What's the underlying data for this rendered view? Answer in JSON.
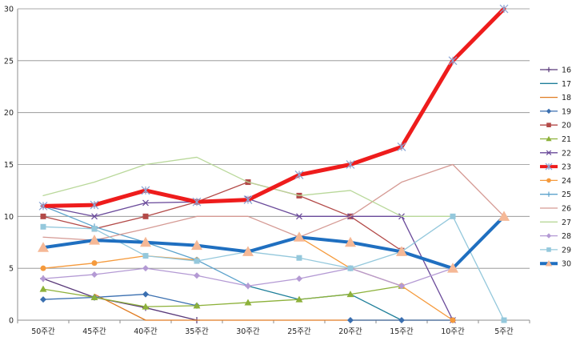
{
  "chart_data": {
    "type": "line",
    "categories": [
      "50주간",
      "45주간",
      "40주간",
      "35주간",
      "30주간",
      "25주간",
      "20주간",
      "15주간",
      "10주간",
      "5주간"
    ],
    "y_ticks": [
      "0",
      "5",
      "10",
      "15",
      "20",
      "25",
      "30"
    ],
    "ylim": [
      0,
      30
    ],
    "grid": "horizontal",
    "legend": "right",
    "series": [
      {
        "name": "16",
        "color": "#5a3a7a",
        "marker": "plus",
        "width": 1.3,
        "values": [
          4,
          2.2,
          1.2,
          0,
          null,
          null,
          null,
          null,
          null,
          null
        ]
      },
      {
        "name": "17",
        "color": "#1f7f9a",
        "marker": "none",
        "width": 1.3,
        "values": [
          null,
          null,
          null,
          null,
          3.3,
          2,
          2.5,
          0,
          null,
          null
        ]
      },
      {
        "name": "18",
        "color": "#e07b20",
        "marker": "none",
        "width": 1.3,
        "values": [
          null,
          2.5,
          0,
          0,
          0,
          0,
          0,
          0,
          0,
          null
        ]
      },
      {
        "name": "19",
        "color": "#3a6fb0",
        "marker": "diamond",
        "width": 1.3,
        "values": [
          2,
          2.2,
          2.5,
          1.4,
          null,
          null,
          0,
          0,
          0,
          null
        ]
      },
      {
        "name": "20",
        "color": "#b34a48",
        "marker": "square",
        "width": 1.3,
        "values": [
          10,
          8.8,
          10,
          11.4,
          13.3,
          12,
          10,
          6.7,
          null,
          null
        ]
      },
      {
        "name": "21",
        "color": "#8db13a",
        "marker": "triangle",
        "width": 1.3,
        "values": [
          3,
          2.2,
          1.3,
          1.4,
          1.7,
          2,
          2.5,
          3.3,
          null,
          null
        ]
      },
      {
        "name": "22",
        "color": "#6a4a9a",
        "marker": "x",
        "width": 1.3,
        "values": [
          11,
          10,
          11.3,
          11.4,
          11.7,
          10,
          10,
          10,
          0,
          null
        ]
      },
      {
        "name": "23",
        "color": "#ee1c1c",
        "marker": "star",
        "width": 5,
        "values": [
          11,
          11.1,
          12.5,
          11.4,
          11.6,
          14,
          15,
          16.7,
          25,
          30
        ]
      },
      {
        "name": "24",
        "color": "#f59a3c",
        "marker": "circle",
        "width": 1.3,
        "values": [
          5,
          5.5,
          6.2,
          5.8,
          null,
          8,
          5,
          3.3,
          0,
          null
        ]
      },
      {
        "name": "25",
        "color": "#5da3cc",
        "marker": "plus",
        "width": 1.3,
        "values": [
          11,
          9,
          7.5,
          5.8,
          3.3,
          null,
          null,
          null,
          null,
          null
        ]
      },
      {
        "name": "26",
        "color": "#d59a94",
        "marker": "none",
        "width": 1.3,
        "values": [
          8,
          7.7,
          8.8,
          10,
          10,
          8,
          10,
          13.3,
          15,
          10
        ]
      },
      {
        "name": "27",
        "color": "#b9d89a",
        "marker": "none",
        "width": 1.3,
        "values": [
          12,
          13.3,
          15,
          15.7,
          13.3,
          12,
          12.5,
          10,
          10,
          null
        ]
      },
      {
        "name": "28",
        "color": "#b49ad4",
        "marker": "diamond",
        "width": 1.3,
        "values": [
          4,
          4.4,
          5,
          4.3,
          3.3,
          4,
          5,
          3.3,
          5,
          null
        ]
      },
      {
        "name": "29",
        "color": "#94c8dc",
        "marker": "square",
        "width": 1.3,
        "values": [
          9,
          8.8,
          6.2,
          5.7,
          6.6,
          6,
          5,
          6.6,
          10,
          0
        ]
      },
      {
        "name": "30",
        "color": "#1f6fc0",
        "marker": "triangle-big",
        "width": 4,
        "values": [
          7,
          7.7,
          7.5,
          7.2,
          6.6,
          8,
          7.5,
          6.6,
          5,
          10
        ]
      }
    ]
  }
}
